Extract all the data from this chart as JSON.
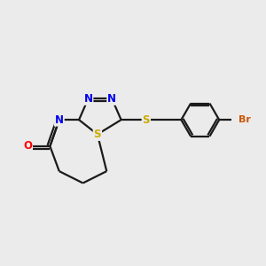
{
  "background_color": "#ebebeb",
  "bond_color": "#1a1a1a",
  "bond_width": 1.6,
  "atom_colors": {
    "N": "#0000ee",
    "S": "#ccaa00",
    "O": "#ff0000",
    "Br": "#cc5500",
    "C": "#1a1a1a"
  },
  "font_size": 8.5,
  "fig_width": 3.0,
  "fig_height": 3.0,
  "dpi": 100
}
